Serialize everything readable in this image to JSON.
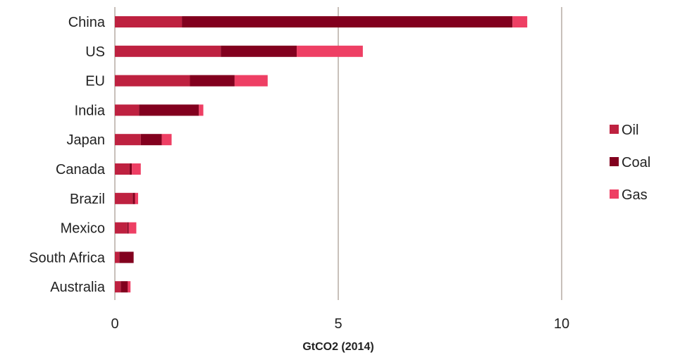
{
  "chart_data": {
    "type": "bar",
    "orientation": "horizontal",
    "stacked": true,
    "categories": [
      "China",
      "US",
      "EU",
      "India",
      "Japan",
      "Canada",
      "Brazil",
      "Mexico",
      "South Africa",
      "Australia"
    ],
    "series": [
      {
        "name": "Oil",
        "color": "#be2140",
        "values": [
          1.5,
          2.37,
          1.68,
          0.54,
          0.58,
          0.33,
          0.4,
          0.28,
          0.1,
          0.13
        ]
      },
      {
        "name": "Coal",
        "color": "#82001e",
        "values": [
          7.4,
          1.7,
          1.0,
          1.34,
          0.47,
          0.05,
          0.05,
          0.03,
          0.32,
          0.16
        ]
      },
      {
        "name": "Gas",
        "color": "#ee3f64",
        "values": [
          0.33,
          1.48,
          0.74,
          0.1,
          0.22,
          0.2,
          0.07,
          0.17,
          0.0,
          0.06
        ]
      }
    ],
    "xlabel": "GtCO2 (2014)",
    "ylabel": "",
    "xlim": [
      0,
      10
    ],
    "xticks": [
      0,
      5,
      10
    ],
    "grid": "vertical",
    "legend": "right"
  }
}
